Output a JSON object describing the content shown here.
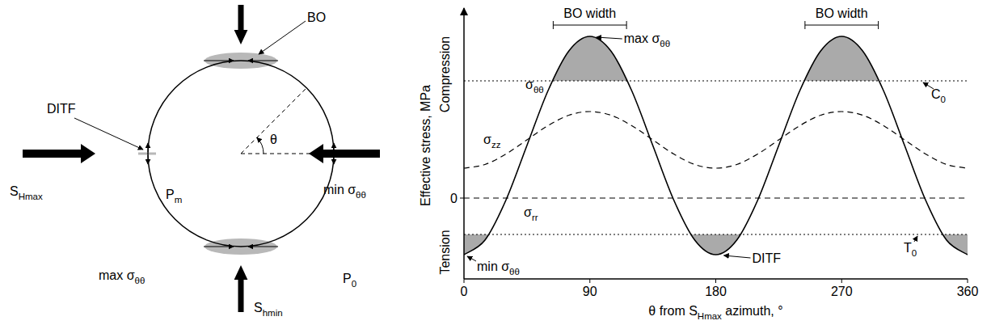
{
  "chart_data": {
    "type": "line",
    "x": [
      0,
      15,
      30,
      45,
      60,
      75,
      90,
      105,
      120,
      135,
      150,
      165,
      180,
      195,
      210,
      225,
      240,
      255,
      270,
      285,
      300,
      315,
      330,
      345,
      360
    ],
    "xlim": [
      0,
      360
    ],
    "ylim": [
      -20,
      47
    ],
    "xticks": [
      0,
      90,
      180,
      270,
      360
    ],
    "yticks": [
      0
    ],
    "x_label": {
      "parts": [
        {
          "t": "θ from S"
        },
        {
          "t": "Hmax",
          "sub": true
        },
        {
          "t": " azimuth, °"
        }
      ]
    },
    "y_label": {
      "parts": [
        {
          "t": "Effective stress, MPa"
        }
      ]
    },
    "y_side_labels": [
      {
        "parts": [
          {
            "t": "Compression"
          }
        ]
      },
      {
        "parts": [
          {
            "t": "Tension"
          }
        ]
      }
    ],
    "series": [
      {
        "name": "σθθ",
        "color": "#000000",
        "line_style": "solid",
        "values": [
          -14,
          -10.4,
          -0.5,
          13,
          26.5,
          36.4,
          40,
          36.4,
          26.5,
          13,
          -0.5,
          -10.4,
          -14,
          -10.4,
          -0.5,
          13,
          26.5,
          36.4,
          40,
          36.4,
          26.5,
          13,
          -0.5,
          -10.4,
          -14
        ]
      },
      {
        "name": "σzz",
        "color": "#000000",
        "line_style": "dashed",
        "values": [
          7.4,
          8.3,
          10.9,
          14.4,
          17.9,
          20.5,
          21.4,
          20.5,
          17.9,
          14.4,
          10.9,
          8.3,
          7.4,
          8.3,
          10.9,
          14.4,
          17.9,
          20.5,
          21.4,
          20.5,
          17.9,
          14.4,
          10.9,
          8.3,
          7.4
        ]
      },
      {
        "name": "σrr",
        "color": "#000000",
        "line_style": "dashed",
        "values": [
          0,
          0,
          0,
          0,
          0,
          0,
          0,
          0,
          0,
          0,
          0,
          0,
          0,
          0,
          0,
          0,
          0,
          0,
          0,
          0,
          0,
          0,
          0,
          0,
          0
        ]
      }
    ],
    "reference_lines": [
      {
        "label": {
          "parts": [
            {
              "t": "C"
            },
            {
              "t": "0",
              "sub": true
            }
          ]
        },
        "value": 29,
        "line_style": "dotted"
      },
      {
        "label": {
          "parts": [
            {
              "t": "T"
            },
            {
              "t": "0",
              "sub": true
            }
          ]
        },
        "value": -9,
        "line_style": "dotted"
      }
    ],
    "annotations": [
      {
        "label": {
          "parts": [
            {
              "t": "BO width"
            }
          ]
        },
        "x": 90
      },
      {
        "label": {
          "parts": [
            {
              "t": "BO width"
            }
          ]
        },
        "x": 270
      },
      {
        "label": {
          "parts": [
            {
              "t": "max σ"
            },
            {
              "t": "θθ",
              "sub": true
            }
          ]
        },
        "x": 90
      },
      {
        "label": {
          "parts": [
            {
              "t": "DITF"
            }
          ]
        },
        "x": 180
      },
      {
        "label": {
          "parts": [
            {
              "t": "min σ"
            },
            {
              "t": "θθ",
              "sub": true
            }
          ]
        },
        "x": 0
      }
    ]
  },
  "diagram": {
    "labels": {
      "bo": {
        "parts": [
          {
            "t": "BO"
          }
        ]
      },
      "ditf": {
        "parts": [
          {
            "t": "DITF"
          }
        ]
      },
      "s_hmax": {
        "parts": [
          {
            "t": "S"
          },
          {
            "t": "Hmax",
            "sub": true
          }
        ]
      },
      "p_m": {
        "parts": [
          {
            "t": "P"
          },
          {
            "t": "m",
            "sub": true
          }
        ]
      },
      "theta": {
        "parts": [
          {
            "t": "θ"
          }
        ]
      },
      "min_stt": {
        "parts": [
          {
            "t": "min σ"
          },
          {
            "t": "θθ",
            "sub": true
          }
        ]
      },
      "max_stt": {
        "parts": [
          {
            "t": "max σ"
          },
          {
            "t": "θθ",
            "sub": true
          }
        ]
      },
      "p_0": {
        "parts": [
          {
            "t": "P"
          },
          {
            "t": "0",
            "sub": true
          }
        ]
      },
      "s_hmin": {
        "parts": [
          {
            "t": "S"
          },
          {
            "t": "hmin",
            "sub": true
          }
        ]
      }
    }
  }
}
